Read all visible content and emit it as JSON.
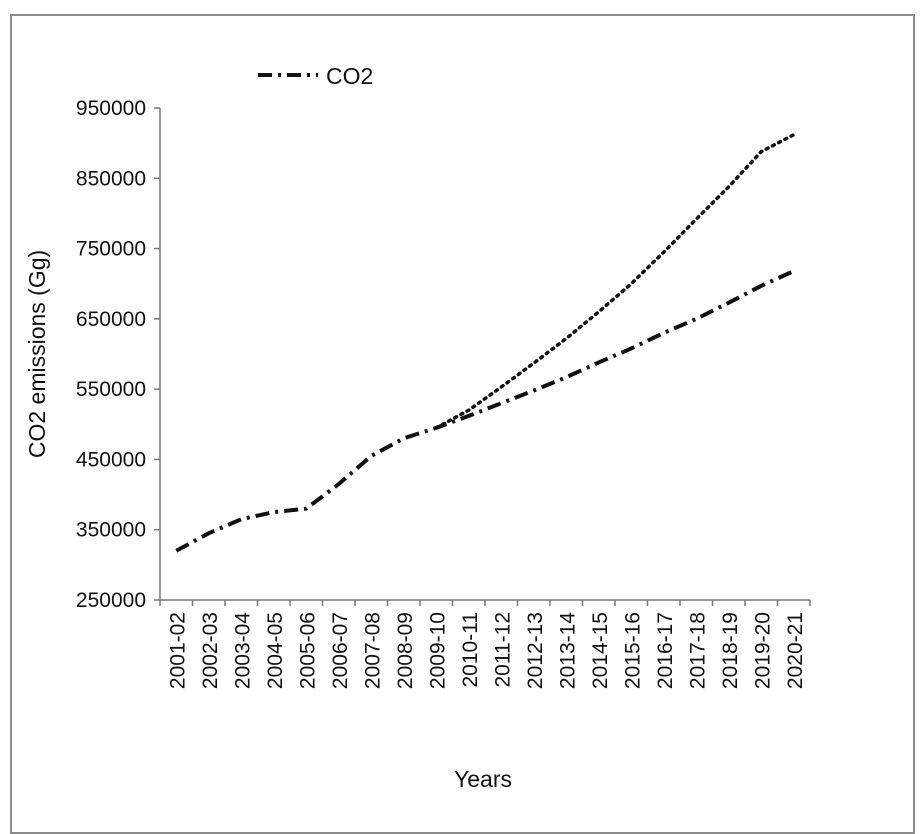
{
  "chart_data": {
    "type": "line",
    "title": "",
    "xlabel": "Years",
    "ylabel": "CO2 emissions (Gg)",
    "categories": [
      "2001-02",
      "2002-03",
      "2003-04",
      "2004-05",
      "2005-06",
      "2006-07",
      "2007-08",
      "2008-09",
      "2009-10",
      "2010-11",
      "2011-12",
      "2012-13",
      "2013-14",
      "2014-15",
      "2015-16",
      "2016-17",
      "2017-18",
      "2018-19",
      "2019-20",
      "2020-21"
    ],
    "ylim": [
      250000,
      950000
    ],
    "yticks": [
      950000,
      850000,
      750000,
      650000,
      550000,
      450000,
      350000,
      250000
    ],
    "ytick_labels": [
      "950000",
      "850000",
      "750000",
      "650000",
      "550000",
      "450000",
      "350000",
      "250000"
    ],
    "grid": false,
    "legend_position": "top-left",
    "series": [
      {
        "name": "CO2",
        "style": "dash-dot",
        "color": "#111111",
        "values": [
          320000,
          345000,
          365000,
          375000,
          380000,
          415000,
          455000,
          480000,
          495000,
          512000,
          530000,
          548000,
          567000,
          588000,
          608000,
          630000,
          650000,
          673000,
          697000,
          718000
        ]
      },
      {
        "name": "",
        "style": "dotted",
        "color": "#111111",
        "x_start_index": 8,
        "values": [
          null,
          null,
          null,
          null,
          null,
          null,
          null,
          null,
          495000,
          520000,
          553000,
          587000,
          622000,
          660000,
          700000,
          745000,
          792000,
          838000,
          888000,
          912000
        ]
      }
    ]
  }
}
